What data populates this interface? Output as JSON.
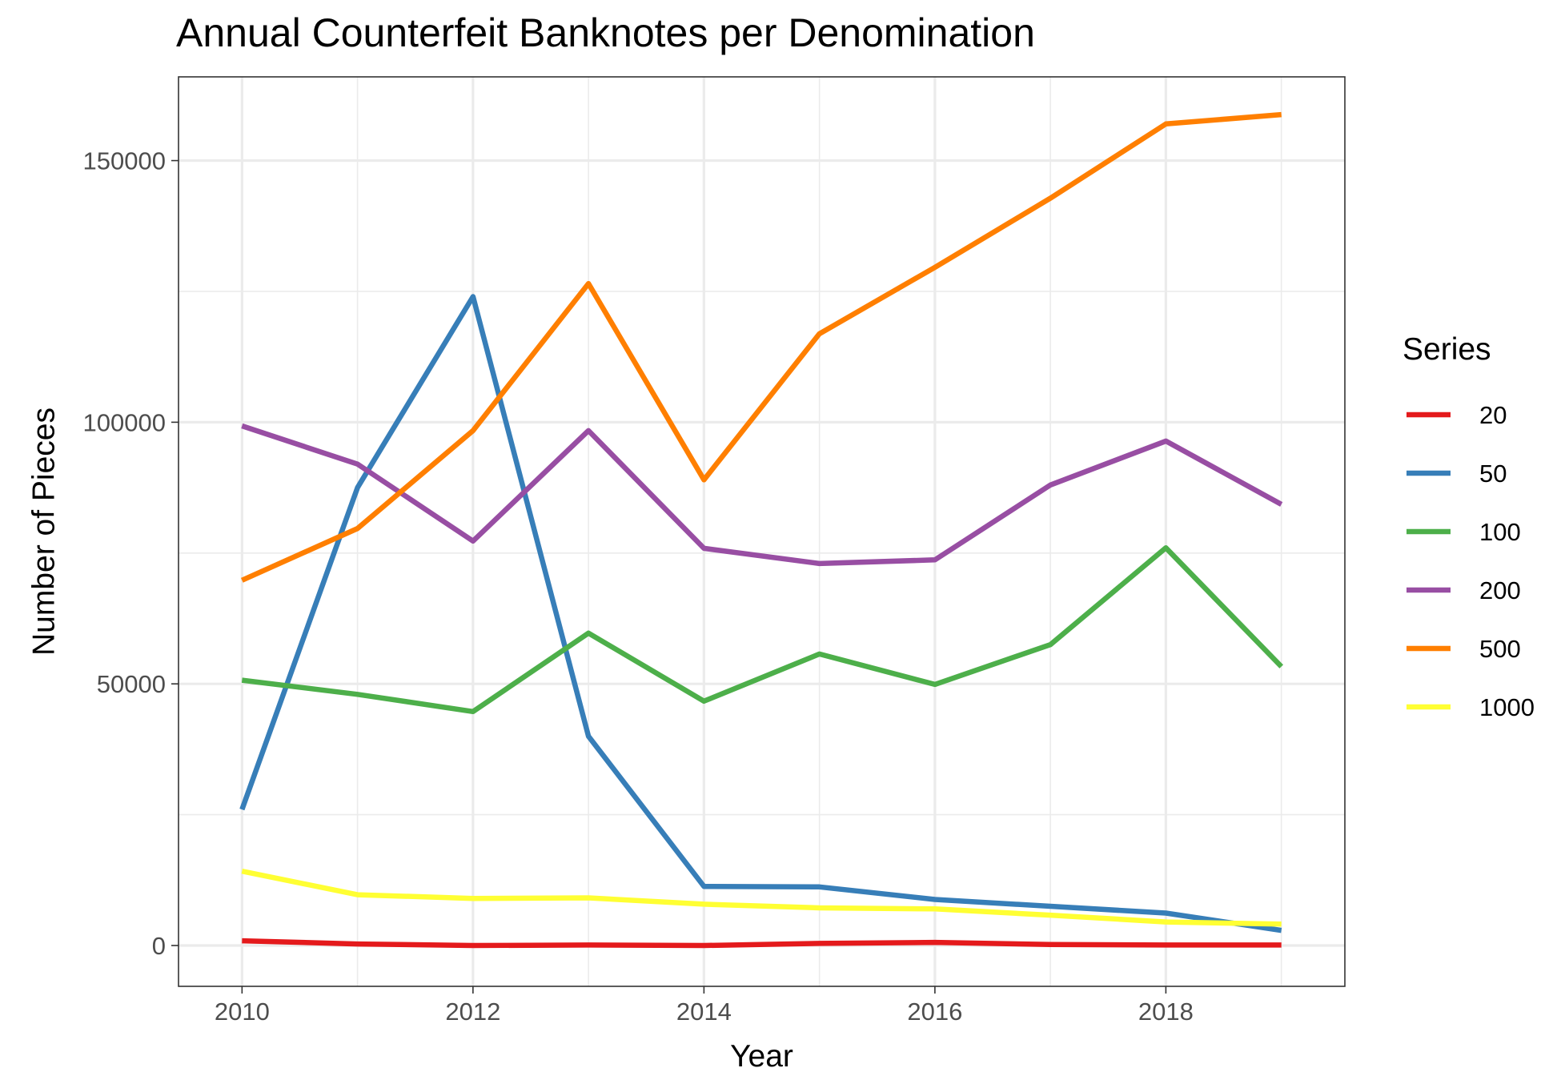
{
  "chart_data": {
    "type": "line",
    "title": "Annual Counterfeit Banknotes per Denomination",
    "xlabel": "Year",
    "ylabel": "Number of Pieces",
    "x": [
      2010,
      2011,
      2012,
      2013,
      2014,
      2015,
      2016,
      2017,
      2018,
      2019
    ],
    "xlim": [
      2009.45,
      2019.55
    ],
    "ylim": [
      -7800,
      166000
    ],
    "x_ticks": [
      2010,
      2012,
      2014,
      2016,
      2018
    ],
    "x_tick_labels": [
      "2010",
      "2012",
      "2014",
      "2016",
      "2018"
    ],
    "y_ticks": [
      0,
      50000,
      100000,
      150000
    ],
    "y_tick_labels": [
      "0",
      "50000",
      "100000",
      "150000"
    ],
    "grid": true,
    "legend": {
      "title": "Series",
      "position": "right"
    },
    "series": [
      {
        "name": "20",
        "color": "#e41a1c",
        "values": [
          900,
          300,
          0,
          100,
          0,
          400,
          600,
          200,
          100,
          100
        ]
      },
      {
        "name": "50",
        "color": "#377eb8",
        "values": [
          26000,
          87500,
          124000,
          40000,
          11300,
          11200,
          8800,
          7500,
          6200,
          2900
        ]
      },
      {
        "name": "100",
        "color": "#4daf4a",
        "values": [
          50700,
          48000,
          44700,
          59700,
          46700,
          55700,
          49900,
          57500,
          76000,
          53300
        ]
      },
      {
        "name": "200",
        "color": "#984ea3",
        "values": [
          99300,
          92000,
          77300,
          98400,
          75900,
          73000,
          73700,
          88000,
          96400,
          84300
        ]
      },
      {
        "name": "500",
        "color": "#ff7f00",
        "values": [
          69800,
          79700,
          98400,
          126500,
          89000,
          116900,
          129600,
          142800,
          157000,
          158800
        ]
      },
      {
        "name": "1000",
        "color": "#ffff33",
        "values": [
          14200,
          9700,
          9000,
          9100,
          7900,
          7200,
          7000,
          5800,
          4500,
          4100
        ]
      }
    ]
  }
}
